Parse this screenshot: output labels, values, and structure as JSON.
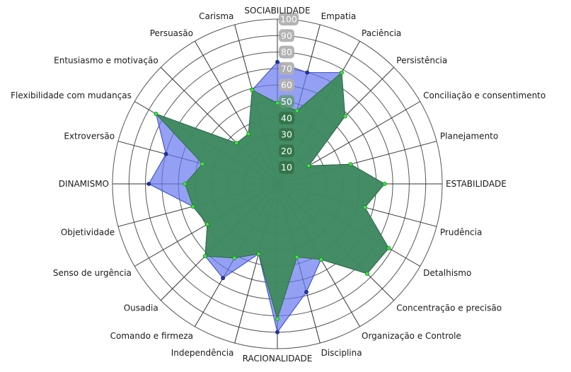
{
  "chart_data": {
    "type": "radar",
    "r_range": [
      0,
      100
    ],
    "r_ticks": [
      10,
      20,
      30,
      40,
      50,
      60,
      70,
      80,
      90,
      100
    ],
    "grid": true,
    "legend": "none",
    "categories": [
      "SOCIABILIDADE",
      "Empatia",
      "Paciência",
      "Persistência",
      "Conciliação e consentimento",
      "Planejamento",
      "ESTABILIDADE",
      "Prudência",
      "Detalhismo",
      "Concentração e precisão",
      "Organização e Controle",
      "Disciplina",
      "RACIONALIDADE",
      "Independência",
      "Comando e firmeza",
      "Ousadia",
      "Senso de urgência",
      "Objetividade",
      "DINAMISMO",
      "Extroversão",
      "Flexibilidade com mudanças",
      "Entusiasmo e motivação",
      "Persuasão",
      "Carisma"
    ],
    "series": [
      {
        "color": "#6677ee",
        "point_color": "#2233aa",
        "values": [
          74,
          70,
          78,
          58,
          22,
          46,
          65,
          55,
          78,
          77,
          53,
          68,
          90,
          44,
          66,
          62,
          49,
          53,
          78,
          70,
          85,
          35,
          35,
          59
        ]
      },
      {
        "color": "#3d8a5a",
        "point_color": "#33ee33",
        "values": [
          49,
          46,
          78,
          58,
          22,
          46,
          65,
          55,
          78,
          77,
          53,
          46,
          82,
          44,
          52,
          62,
          49,
          53,
          56,
          47,
          85,
          35,
          35,
          59
        ]
      }
    ],
    "colors": {
      "grid": "#555555",
      "axis": "#333333",
      "tick_bg_light": "#b0b0b0",
      "tick_bg_dark": "#2f6e40",
      "tick_bg_blend": "#5c9a70"
    }
  }
}
